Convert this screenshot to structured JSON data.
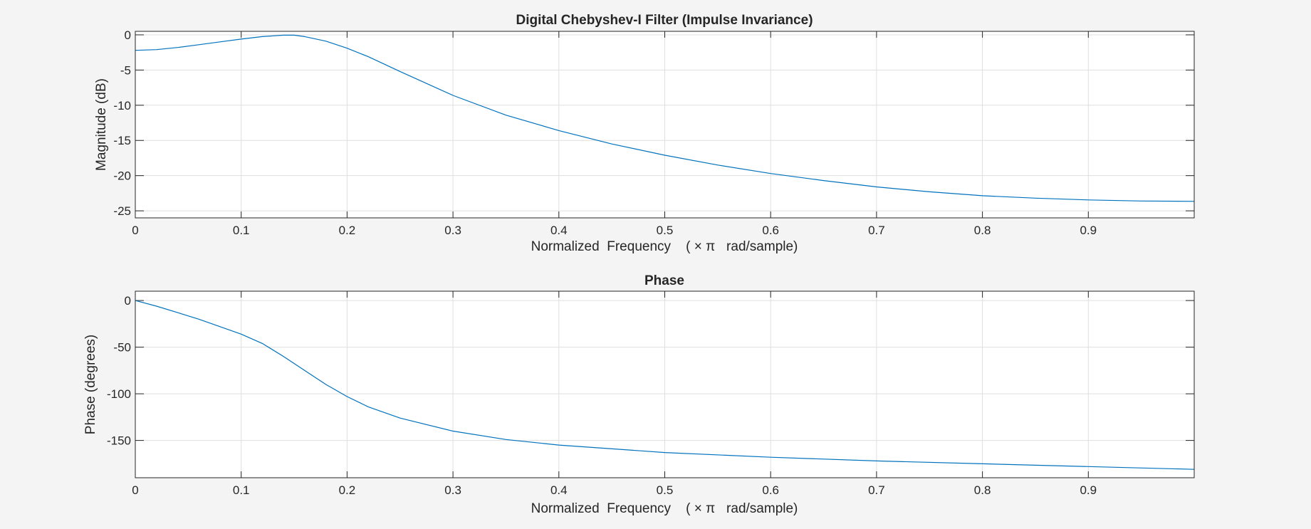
{
  "chart_data": [
    {
      "type": "line",
      "title": "Digital Chebyshev-I Filter (Impulse Invariance)",
      "xlabel": "Normalized  Frequency    ( × π   rad/sample)",
      "ylabel": "Magnitude (dB)",
      "xlim": [
        0,
        1
      ],
      "ylim": [
        -26,
        0.5
      ],
      "xticks": [
        0,
        0.1,
        0.2,
        0.3,
        0.4,
        0.5,
        0.6,
        0.7,
        0.8,
        0.9
      ],
      "xtick_labels": [
        "0",
        "0.1",
        "0.2",
        "0.3",
        "0.4",
        "0.5",
        "0.6",
        "0.7",
        "0.8",
        "0.9"
      ],
      "yticks": [
        0,
        -5,
        -10,
        -15,
        -20,
        -25
      ],
      "ytick_labels": [
        "0",
        "-5",
        "-10",
        "-15",
        "-20",
        "-25"
      ],
      "grid": true,
      "color": "#0072bd",
      "series": [
        {
          "x": [
            0,
            0.02,
            0.04,
            0.06,
            0.08,
            0.1,
            0.12,
            0.14,
            0.15,
            0.16,
            0.18,
            0.2,
            0.22,
            0.25,
            0.3,
            0.35,
            0.4,
            0.45,
            0.5,
            0.55,
            0.6,
            0.65,
            0.7,
            0.75,
            0.8,
            0.85,
            0.9,
            0.95,
            1.0
          ],
          "values": [
            -2.2,
            -2.1,
            -1.8,
            -1.4,
            -1.0,
            -0.6,
            -0.25,
            -0.05,
            -0.05,
            -0.25,
            -0.9,
            -1.9,
            -3.1,
            -5.2,
            -8.6,
            -11.4,
            -13.6,
            -15.5,
            -17.1,
            -18.5,
            -19.7,
            -20.7,
            -21.6,
            -22.3,
            -22.85,
            -23.2,
            -23.45,
            -23.6,
            -23.65
          ]
        }
      ]
    },
    {
      "type": "line",
      "title": "Phase",
      "xlabel": "Normalized  Frequency    ( × π   rad/sample)",
      "ylabel": "Phase (degrees)",
      "xlim": [
        0,
        1
      ],
      "ylim": [
        -190,
        10
      ],
      "xticks": [
        0,
        0.1,
        0.2,
        0.3,
        0.4,
        0.5,
        0.6,
        0.7,
        0.8,
        0.9
      ],
      "xtick_labels": [
        "0",
        "0.1",
        "0.2",
        "0.3",
        "0.4",
        "0.5",
        "0.6",
        "0.7",
        "0.8",
        "0.9"
      ],
      "yticks": [
        0,
        -50,
        -100,
        -150
      ],
      "ytick_labels": [
        "0",
        "-50",
        "-100",
        "-150"
      ],
      "grid": true,
      "color": "#0072bd",
      "series": [
        {
          "x": [
            0,
            0.02,
            0.04,
            0.06,
            0.08,
            0.1,
            0.12,
            0.14,
            0.16,
            0.18,
            0.2,
            0.22,
            0.25,
            0.3,
            0.35,
            0.4,
            0.5,
            0.6,
            0.7,
            0.8,
            0.9,
            1.0
          ],
          "values": [
            0,
            -6,
            -13,
            -20,
            -28,
            -36,
            -46,
            -60,
            -75,
            -90,
            -103,
            -114,
            -126,
            -140,
            -149,
            -155,
            -163,
            -168,
            -172,
            -175,
            -178,
            -181
          ]
        }
      ]
    }
  ]
}
